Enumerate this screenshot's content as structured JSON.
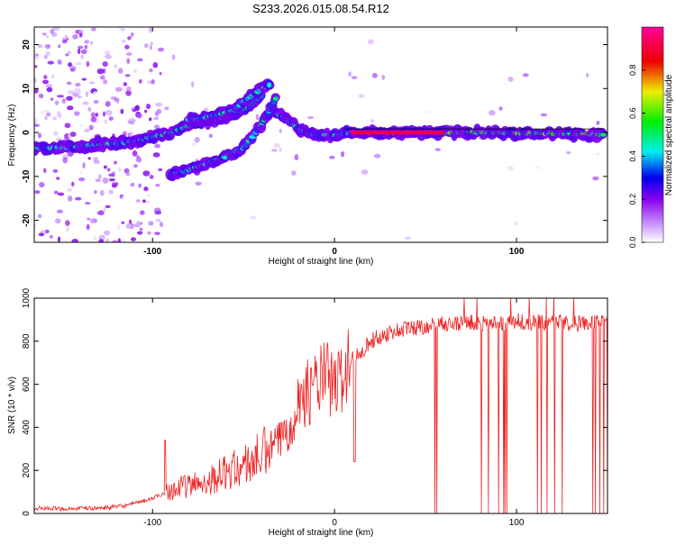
{
  "figure": {
    "title": "S233.2026.015.08.54.R12"
  },
  "chart_data": [
    {
      "type": "heatmap",
      "xlabel": "Height of straight line (km)",
      "ylabel": "Frequency (Hz)",
      "xlim": [
        -165,
        150
      ],
      "ylim": [
        -25,
        24
      ],
      "xticks": [
        -100,
        0,
        100
      ],
      "yticks": [
        -20,
        -10,
        0,
        10,
        20
      ],
      "colorbar": {
        "label": "Normalized spectral amplitude",
        "ticks": [
          0.0,
          0.2,
          0.4,
          0.6,
          0.8
        ],
        "range": [
          0,
          1
        ],
        "colormap": [
          "#ffffff",
          "#cc99ff",
          "#8800ee",
          "#0000ee",
          "#00eeee",
          "#00ee00",
          "#eeee00",
          "#ee0000",
          "#ff0099"
        ]
      },
      "ridges": [
        {
          "x": [
            -165,
            -150,
            -140,
            -130,
            -120,
            -110,
            -100,
            -90,
            -80,
            -70,
            -60,
            -50,
            -45,
            -40
          ],
          "y": [
            -3.5,
            -3.5,
            -3.2,
            -2.8,
            -2.5,
            -2.0,
            -1.0,
            0.0,
            1.5,
            2.5,
            3.5,
            5.0,
            6.5,
            8.5
          ]
        },
        {
          "x": [
            -80,
            -75,
            -70,
            -65,
            -60,
            -55,
            -50,
            -45,
            -40,
            -35
          ],
          "y": [
            3.0,
            3.0,
            3.5,
            4.0,
            4.5,
            5.0,
            7.0,
            8.5,
            10.0,
            11.0
          ]
        },
        {
          "x": [
            -90,
            -80,
            -70,
            -60,
            -50,
            -45,
            -40,
            -35,
            -32
          ],
          "y": [
            -9.5,
            -8.5,
            -7.0,
            -5.5,
            -3.5,
            -1.0,
            2.0,
            5.5,
            8.0
          ]
        },
        {
          "x": [
            -32,
            -28,
            -25,
            -20,
            -15,
            -10,
            -5,
            0,
            5,
            10
          ],
          "y": [
            4.5,
            3.5,
            2.5,
            1.0,
            0.0,
            -0.8,
            -0.5,
            -0.8,
            -0.2,
            0.0
          ]
        },
        {
          "x": [
            10,
            30,
            50,
            60,
            80,
            100,
            120,
            140,
            148
          ],
          "y": [
            0.0,
            0.0,
            0.0,
            0.0,
            0.0,
            -0.2,
            -0.3,
            -0.5,
            -0.5
          ]
        }
      ]
    },
    {
      "type": "line",
      "xlabel": "Height of straight line (km)",
      "ylabel": "SNR (10 * v/v)",
      "xlim": [
        -165,
        150
      ],
      "ylim": [
        0,
        1000
      ],
      "xticks": [
        -100,
        0,
        100
      ],
      "yticks": [
        0,
        200,
        400,
        600,
        800,
        1000
      ],
      "color": "#ee2222",
      "series": [
        {
          "x": [
            -165,
            -150,
            -130,
            -120,
            -110,
            -100,
            -95,
            -90,
            -80,
            -70,
            -60,
            -50,
            -40,
            -30,
            -25,
            -20,
            -10,
            -5,
            0,
            5,
            10,
            15,
            20,
            30,
            40,
            50,
            60,
            70,
            80,
            90,
            100,
            110,
            120,
            130,
            140,
            150
          ],
          "y": [
            25,
            22,
            25,
            30,
            45,
            70,
            90,
            110,
            130,
            150,
            190,
            220,
            270,
            340,
            400,
            520,
            600,
            640,
            580,
            650,
            720,
            760,
            800,
            840,
            860,
            870,
            880,
            885,
            890,
            880,
            895,
            885,
            890,
            880,
            885,
            890
          ]
        }
      ]
    }
  ]
}
